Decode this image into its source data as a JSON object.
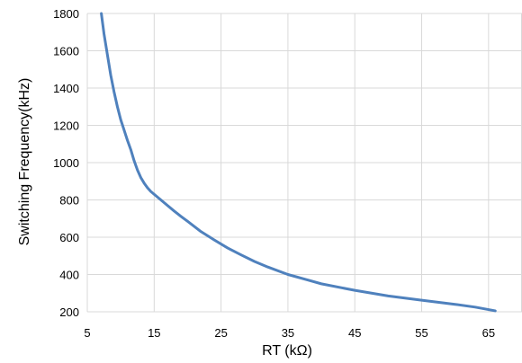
{
  "chart_data": {
    "type": "line",
    "title": "",
    "xlabel": "RT (kΩ)",
    "ylabel": "Switching Frequency(kHz)",
    "xlim": [
      5,
      70
    ],
    "ylim": [
      200,
      1800
    ],
    "xticks": [
      5,
      15,
      25,
      35,
      45,
      55,
      65
    ],
    "yticks": [
      200,
      400,
      600,
      800,
      1000,
      1200,
      1400,
      1600,
      1800
    ],
    "grid": true,
    "legend": "none",
    "colors": {
      "line": "#4f81bd",
      "grid": "#d9d9d9"
    },
    "series": [
      {
        "x": [
          7.1,
          7.5,
          8,
          8.5,
          9,
          9.5,
          10,
          10.5,
          11,
          11.5,
          12,
          12.5,
          13,
          13.5,
          14,
          14.5,
          15,
          16,
          17,
          18,
          19,
          20,
          22,
          24,
          26,
          28,
          30,
          32,
          35,
          38,
          40,
          45,
          50,
          55,
          60,
          63,
          66
        ],
        "y": [
          1800,
          1690,
          1580,
          1470,
          1380,
          1300,
          1230,
          1175,
          1120,
          1070,
          1010,
          960,
          920,
          890,
          865,
          845,
          830,
          800,
          770,
          740,
          712,
          685,
          630,
          585,
          542,
          505,
          470,
          440,
          400,
          370,
          350,
          315,
          285,
          262,
          240,
          225,
          205
        ]
      }
    ]
  }
}
